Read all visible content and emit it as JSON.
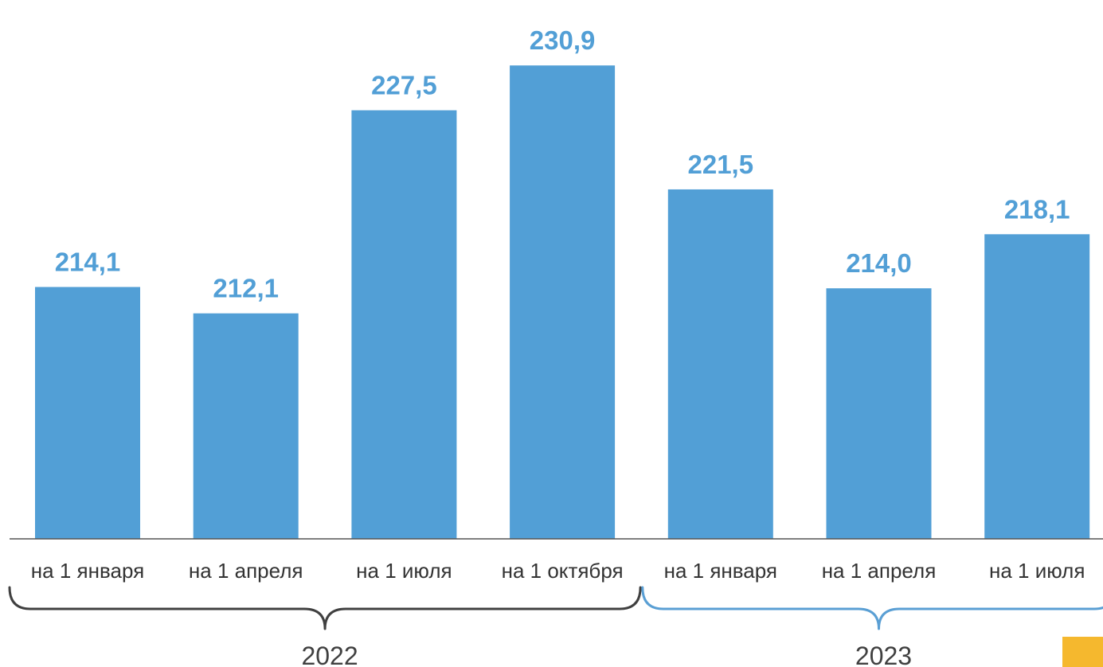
{
  "chart_data": {
    "type": "bar",
    "categories": [
      "на 1 января",
      "на 1 апреля",
      "на 1 июля",
      "на 1 октября",
      "на 1 января",
      "на 1 апреля",
      "на 1 июля"
    ],
    "values": [
      214.1,
      212.1,
      227.5,
      230.9,
      221.5,
      214.0,
      218.1
    ],
    "value_labels": [
      "214,1",
      "212,1",
      "227,5",
      "230,9",
      "221,5",
      "214,0",
      "218,1"
    ],
    "groups": [
      {
        "label": "2022",
        "start_index": 0,
        "end_index": 3,
        "bracket_color": "#404040"
      },
      {
        "label": "2023",
        "start_index": 4,
        "end_index": 6,
        "bracket_color": "#5a9fd4"
      }
    ],
    "ylim": [
      195,
      232
    ],
    "grid": false,
    "legend": "none",
    "colors": {
      "bar": "#529fd6",
      "value_label": "#529fd6",
      "axis": "#555555",
      "corner_accent": "#f5b82e"
    }
  }
}
